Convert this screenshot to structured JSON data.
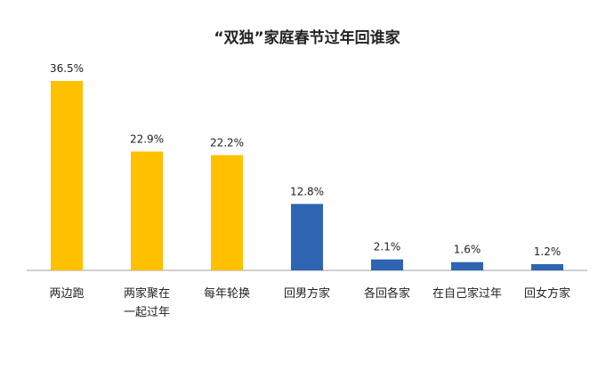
{
  "chart_data": {
    "type": "bar",
    "title": "“双独”家庭春节过年回谁家",
    "categories": [
      "两边跑",
      "两家聚在一起过年",
      "每年轮换",
      "回男方家",
      "各回各家",
      "在自己家过年",
      "回女方家"
    ],
    "category_lines": [
      [
        "两边跑"
      ],
      [
        "两家聚在",
        "一起过年"
      ],
      [
        "每年轮换"
      ],
      [
        "回男方家"
      ],
      [
        "各回各家"
      ],
      [
        "在自己家过年"
      ],
      [
        "回女方家"
      ]
    ],
    "values": [
      36.5,
      22.9,
      22.2,
      12.8,
      2.1,
      1.6,
      1.2
    ],
    "value_labels": [
      "36.5%",
      "22.9%",
      "22.2%",
      "12.8%",
      "2.1%",
      "1.6%",
      "1.2%"
    ],
    "bar_colors": [
      "#FFC000",
      "#FFC000",
      "#FFC000",
      "#2E64B2",
      "#2E64B2",
      "#2E64B2",
      "#2E64B2"
    ],
    "xlabel": "",
    "ylabel": "",
    "ylim": [
      0,
      36.5
    ],
    "grid": false,
    "legend": "none"
  }
}
